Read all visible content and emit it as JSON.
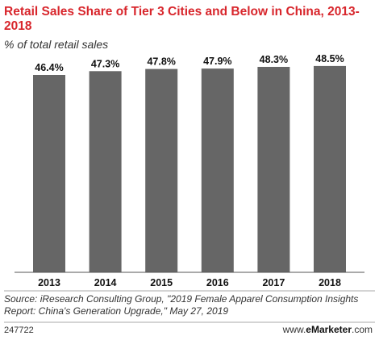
{
  "chart_data": {
    "type": "bar",
    "title": "Retail Sales Share of Tier 3 Cities and Below in China, 2013-2018",
    "subtitle": "% of total retail sales",
    "categories": [
      "2013",
      "2014",
      "2015",
      "2016",
      "2017",
      "2018"
    ],
    "values": [
      46.4,
      47.3,
      47.8,
      47.9,
      48.3,
      48.5
    ],
    "value_labels": [
      "46.4%",
      "47.3%",
      "47.8%",
      "47.9%",
      "48.3%",
      "48.5%"
    ],
    "ylim": [
      0,
      50
    ],
    "grid": false,
    "bar_color": "#666666"
  },
  "footer": {
    "source": "Source: iResearch Consulting Group, \"2019 Female Apparel Consumption Insights Report: China's Generation Upgrade,\" May 27, 2019",
    "chart_id": "247722",
    "brand_prefix": "www.",
    "brand_name": "eMarketer",
    "brand_suffix": ".com"
  },
  "colors": {
    "title": "#d8262c",
    "divider": "#aaaaaa"
  }
}
